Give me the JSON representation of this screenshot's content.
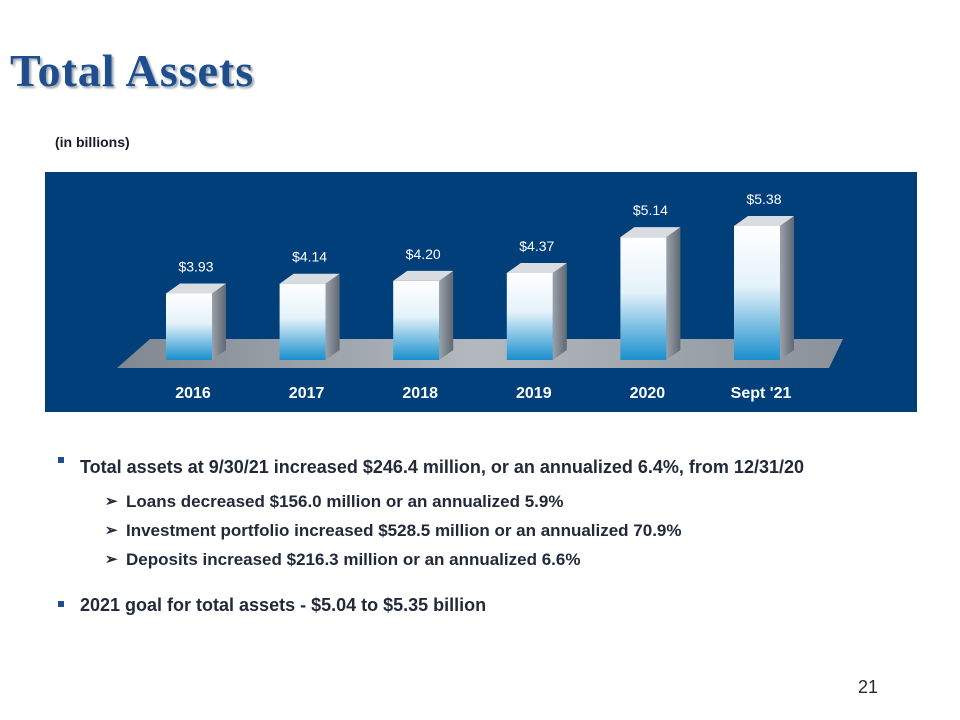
{
  "slide": {
    "title": "Total Assets",
    "unit_note": "(in billions)",
    "page_number": "21"
  },
  "chart_data": {
    "type": "bar",
    "categories": [
      "2016",
      "2017",
      "2018",
      "2019",
      "2020",
      "Sept '21"
    ],
    "values": [
      3.93,
      4.14,
      4.2,
      4.37,
      5.14,
      5.38
    ],
    "value_labels": [
      "$3.93",
      "$4.14",
      "$4.20",
      "$4.37",
      "$5.14",
      "$5.38"
    ],
    "title": "",
    "xlabel": "",
    "ylabel": "",
    "grid": false,
    "style": "3d-column",
    "colors": {
      "background": "#003f7a",
      "bar_top": "#ffffff",
      "bar_bottom": "#1a8fcc",
      "bar_side": "#8a929c",
      "floor": "#9aa0a8",
      "text": "#ffffff"
    }
  },
  "bullets": [
    {
      "text": "Total assets at 9/30/21 increased $246.4 million, or an annualized 6.4%, from 12/31/20",
      "subs": [
        "Loans decreased $156.0 million or an annualized 5.9%",
        "Investment portfolio increased $528.5 million or an annualized 70.9%",
        "Deposits increased $216.3 million or an annualized 6.6%"
      ]
    },
    {
      "text": "2021 goal for total assets - $5.04 to $5.35 billion"
    }
  ],
  "glyphs": {
    "sub_arrow": "➢"
  }
}
